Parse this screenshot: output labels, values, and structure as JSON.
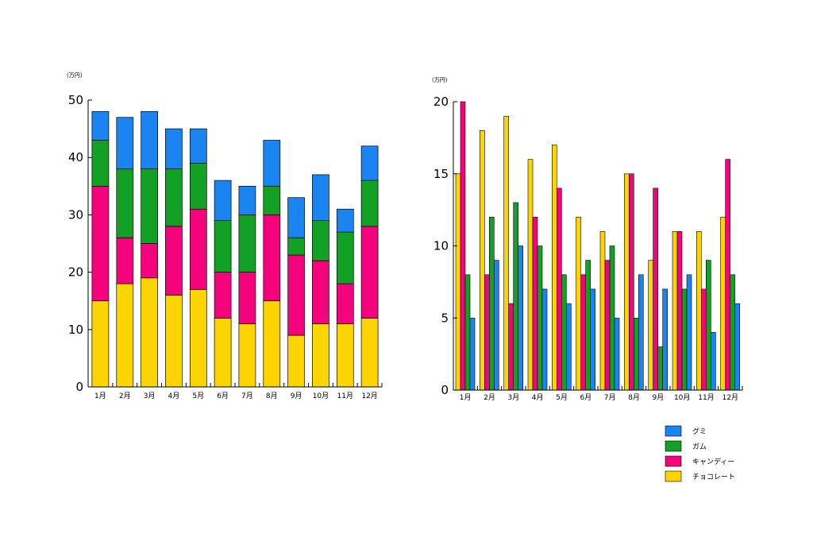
{
  "colors": {
    "gummy": "#1a85f0",
    "gum": "#12a025",
    "candy": "#f5037d",
    "chocolate": "#fcd400"
  },
  "legend": {
    "items": [
      {
        "key": "gummy",
        "label": "グミ"
      },
      {
        "key": "gum",
        "label": "ガム"
      },
      {
        "key": "candy",
        "label": "キャンディー"
      },
      {
        "key": "chocolate",
        "label": "チョコレート"
      }
    ]
  },
  "chart_data": [
    {
      "type": "bar",
      "stacked": true,
      "unit_label": "(万円)",
      "categories": [
        "1月",
        "2月",
        "3月",
        "4月",
        "5月",
        "6月",
        "7月",
        "8月",
        "9月",
        "10月",
        "11月",
        "12月"
      ],
      "ylim": [
        0,
        50
      ],
      "yticks": [
        0,
        10,
        20,
        30,
        40,
        50
      ],
      "stack_order": [
        "チョコレート",
        "キャンディー",
        "ガム",
        "グミ"
      ],
      "series": [
        {
          "name": "チョコレート",
          "color_key": "chocolate",
          "values": [
            15,
            18,
            19,
            16,
            17,
            12,
            11,
            15,
            9,
            11,
            11,
            12
          ]
        },
        {
          "name": "キャンディー",
          "color_key": "candy",
          "values": [
            20,
            8,
            6,
            12,
            14,
            8,
            9,
            15,
            14,
            11,
            7,
            16
          ]
        },
        {
          "name": "ガム",
          "color_key": "gum",
          "values": [
            8,
            12,
            13,
            10,
            8,
            9,
            10,
            5,
            3,
            7,
            9,
            8
          ]
        },
        {
          "name": "グミ",
          "color_key": "gummy",
          "values": [
            5,
            9,
            10,
            7,
            6,
            7,
            5,
            8,
            7,
            8,
            4,
            6
          ]
        }
      ],
      "grid": false
    },
    {
      "type": "bar",
      "stacked": false,
      "unit_label": "(万円)",
      "categories": [
        "1月",
        "2月",
        "3月",
        "4月",
        "5月",
        "6月",
        "7月",
        "8月",
        "9月",
        "10月",
        "11月",
        "12月"
      ],
      "ylim": [
        0,
        20
      ],
      "yticks": [
        0,
        5,
        10,
        15,
        20
      ],
      "series": [
        {
          "name": "チョコレート",
          "color_key": "chocolate",
          "values": [
            15,
            18,
            19,
            16,
            17,
            12,
            11,
            15,
            9,
            11,
            11,
            12
          ]
        },
        {
          "name": "キャンディー",
          "color_key": "candy",
          "values": [
            20,
            8,
            6,
            12,
            14,
            8,
            9,
            15,
            14,
            11,
            7,
            16
          ]
        },
        {
          "name": "ガム",
          "color_key": "gum",
          "values": [
            8,
            12,
            13,
            10,
            8,
            9,
            10,
            5,
            3,
            7,
            9,
            8
          ]
        },
        {
          "name": "グミ",
          "color_key": "gummy",
          "values": [
            5,
            9,
            10,
            7,
            6,
            7,
            5,
            8,
            7,
            8,
            4,
            6
          ]
        }
      ],
      "legend_position": "bottom-right",
      "grid": false
    }
  ]
}
